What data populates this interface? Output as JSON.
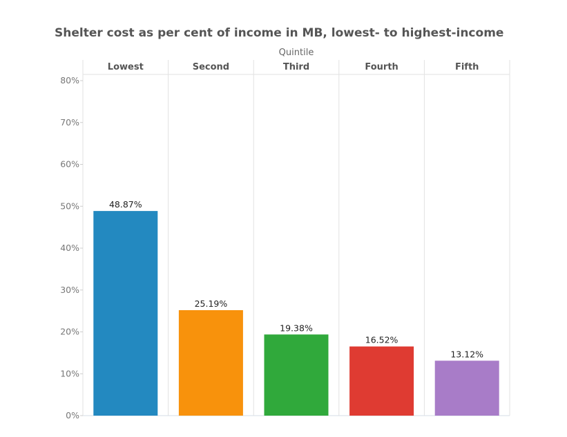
{
  "chart_data": {
    "type": "bar",
    "title": "Shelter cost as per cent of income in MB, lowest- to highest-income",
    "column_header_title": "Quintile",
    "categories": [
      "Lowest",
      "Second",
      "Third",
      "Fourth",
      "Fifth"
    ],
    "values": [
      48.87,
      25.19,
      19.38,
      16.52,
      13.12
    ],
    "data_labels": [
      "48.87%",
      "25.19%",
      "19.38%",
      "16.52%",
      "13.12%"
    ],
    "colors": [
      "#2389c0",
      "#f8920c",
      "#30a93b",
      "#df3b32",
      "#a87cc8"
    ],
    "ylim": [
      0,
      80
    ],
    "yticks": [
      0,
      10,
      20,
      30,
      40,
      50,
      60,
      70,
      80
    ],
    "ytick_labels": [
      "0%",
      "10%",
      "20%",
      "30%",
      "40%",
      "50%",
      "60%",
      "70%",
      "80%"
    ],
    "xlabel": "",
    "ylabel": "",
    "grid": false,
    "legend": "none"
  }
}
